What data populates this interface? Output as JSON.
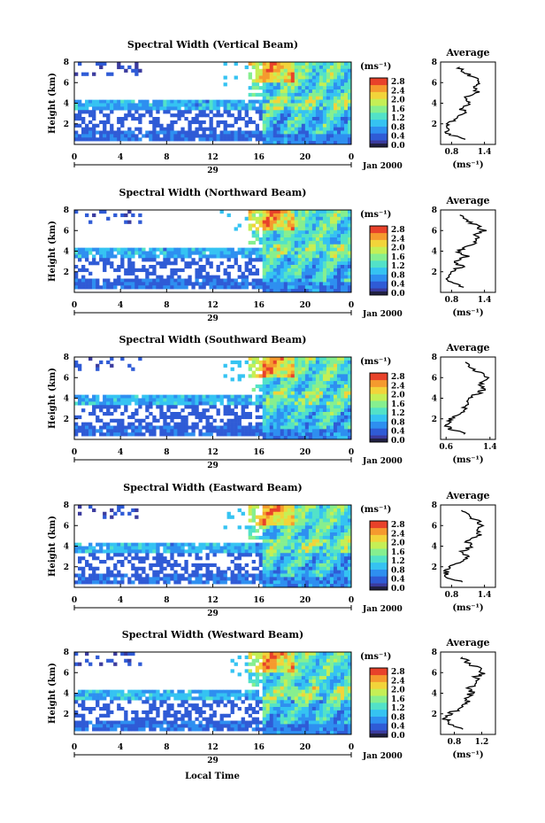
{
  "colors": {
    "colormap": [
      "#3b3b9e",
      "#2f5bd6",
      "#2e8ff0",
      "#35c3f2",
      "#52e2c8",
      "#86ef8f",
      "#c5ef55",
      "#f2d43a",
      "#f59a2e",
      "#e8422a"
    ]
  },
  "chart_data": [
    {
      "type": "heatmap",
      "title": "Spectral Width (Vertical Beam)",
      "ylabel": "Height (km)",
      "yticks": [
        "2",
        "4",
        "6",
        "8"
      ],
      "xticks": [
        "0",
        "4",
        "8",
        "12",
        "16",
        "20",
        "0"
      ],
      "date_mid": "29",
      "date_end": "Jan 2000",
      "units": "(ms⁻¹)",
      "colorbar_ticks": [
        "2.8",
        "2.4",
        "2.0",
        "1.6",
        "1.2",
        "0.8",
        "0.4",
        "0.0"
      ],
      "profile": {
        "title": "Average",
        "xlabel": "(ms⁻¹)",
        "xticks": [
          "0.8",
          "1.4"
        ],
        "xlim": [
          0.6,
          1.6
        ],
        "ylim": [
          0,
          8
        ],
        "yticks": [
          "2",
          "4",
          "6",
          "8"
        ],
        "heights": [
          0.5,
          1.0,
          1.5,
          2.0,
          2.5,
          3.0,
          3.5,
          4.0,
          4.5,
          5.0,
          5.5,
          6.0,
          6.5,
          7.0,
          7.5
        ],
        "values": [
          1.08,
          0.75,
          0.72,
          0.75,
          0.88,
          1.02,
          0.98,
          1.12,
          1.05,
          1.28,
          1.18,
          1.32,
          1.2,
          1.02,
          0.95
        ]
      }
    },
    {
      "type": "heatmap",
      "title": "Spectral Width (Northward Beam)",
      "ylabel": "Height (km)",
      "yticks": [
        "2",
        "4",
        "6",
        "8"
      ],
      "xticks": [
        "0",
        "4",
        "8",
        "12",
        "16",
        "20",
        "0"
      ],
      "date_mid": "29",
      "date_end": "Jan 2000",
      "units": "(ms⁻¹)",
      "colorbar_ticks": [
        "2.8",
        "2.4",
        "2.0",
        "1.6",
        "1.2",
        "0.8",
        "0.4",
        "0.0"
      ],
      "profile": {
        "title": "Average",
        "xlabel": "(ms⁻¹)",
        "xticks": [
          "0.8",
          "1.4"
        ],
        "xlim": [
          0.6,
          1.6
        ],
        "ylim": [
          0,
          8
        ],
        "yticks": [
          "2",
          "4",
          "6",
          "8"
        ],
        "heights": [
          0.5,
          1.0,
          1.5,
          2.0,
          2.5,
          3.0,
          3.5,
          4.0,
          4.5,
          5.0,
          5.5,
          6.0,
          6.5,
          7.0,
          7.5
        ],
        "values": [
          1.05,
          0.75,
          0.72,
          0.78,
          0.98,
          0.88,
          1.08,
          0.9,
          1.12,
          1.3,
          1.22,
          1.38,
          1.25,
          1.05,
          0.95
        ]
      }
    },
    {
      "type": "heatmap",
      "title": "Spectral Width (Southward Beam)",
      "ylabel": "Height (km)",
      "yticks": [
        "2",
        "4",
        "6",
        "8"
      ],
      "xticks": [
        "0",
        "4",
        "8",
        "12",
        "16",
        "20",
        "0"
      ],
      "date_mid": "29",
      "date_end": "Jan 2000",
      "units": "(ms⁻¹)",
      "colorbar_ticks": [
        "2.8",
        "2.4",
        "2.0",
        "1.6",
        "1.2",
        "0.8",
        "0.4",
        "0.0"
      ],
      "profile": {
        "title": "Average",
        "xlabel": "(ms⁻¹)",
        "xticks": [
          "0.6",
          "1.4"
        ],
        "xlim": [
          0.5,
          1.5
        ],
        "ylim": [
          0,
          8
        ],
        "yticks": [
          "2",
          "4",
          "6",
          "8"
        ],
        "heights": [
          0.5,
          1.0,
          1.5,
          2.0,
          2.5,
          3.0,
          3.5,
          4.0,
          4.5,
          5.0,
          5.5,
          6.0,
          6.5,
          7.0,
          7.5
        ],
        "values": [
          0.95,
          0.68,
          0.6,
          0.7,
          0.88,
          0.92,
          1.05,
          1.0,
          1.2,
          1.3,
          1.2,
          1.35,
          1.2,
          1.05,
          0.95
        ]
      }
    },
    {
      "type": "heatmap",
      "title": "Spectral Width (Eastward Beam)",
      "ylabel": "Height (km)",
      "yticks": [
        "2",
        "4",
        "6",
        "8"
      ],
      "xticks": [
        "0",
        "4",
        "8",
        "12",
        "16",
        "20",
        "0"
      ],
      "date_mid": "29",
      "date_end": "Jan 2000",
      "units": "(ms⁻¹)",
      "colorbar_ticks": [
        "2.8",
        "2.4",
        "2.0",
        "1.6",
        "1.2",
        "0.8",
        "0.4",
        "0.0"
      ],
      "profile": {
        "title": "Average",
        "xlabel": "(ms⁻¹)",
        "xticks": [
          "0.8",
          "1.4"
        ],
        "xlim": [
          0.6,
          1.6
        ],
        "ylim": [
          0,
          8
        ],
        "yticks": [
          "2",
          "4",
          "6",
          "8"
        ],
        "heights": [
          0.5,
          1.0,
          1.5,
          2.0,
          2.5,
          3.0,
          3.5,
          4.0,
          4.5,
          5.0,
          5.5,
          6.0,
          6.5,
          7.0,
          7.5
        ],
        "values": [
          1.02,
          0.72,
          0.7,
          0.75,
          0.95,
          1.1,
          0.98,
          1.18,
          1.05,
          1.32,
          1.25,
          1.38,
          1.25,
          1.1,
          0.98
        ]
      }
    },
    {
      "type": "heatmap",
      "title": "Spectral Width (Westward Beam)",
      "ylabel": "Height (km)",
      "yticks": [
        "2",
        "4",
        "6",
        "8"
      ],
      "xticks": [
        "0",
        "4",
        "8",
        "12",
        "16",
        "20",
        "0"
      ],
      "date_mid": "29",
      "date_end": "Jan 2000",
      "units": "(ms⁻¹)",
      "colorbar_ticks": [
        "2.8",
        "2.4",
        "2.0",
        "1.6",
        "1.2",
        "0.8",
        "0.4",
        "0.0"
      ],
      "profile": {
        "title": "Average",
        "xlabel": "(ms⁻¹)",
        "xticks": [
          "0.8",
          "1.2"
        ],
        "xlim": [
          0.6,
          1.4
        ],
        "ylim": [
          0,
          8
        ],
        "yticks": [
          "2",
          "4",
          "6",
          "8"
        ],
        "heights": [
          0.5,
          1.0,
          1.5,
          2.0,
          2.5,
          3.0,
          3.5,
          4.0,
          4.5,
          5.0,
          5.5,
          6.0,
          6.5,
          7.0,
          7.5
        ],
        "values": [
          0.95,
          0.72,
          0.68,
          0.72,
          0.9,
          1.0,
          0.95,
          1.05,
          1.0,
          1.18,
          1.1,
          1.22,
          1.12,
          1.0,
          0.92
        ]
      }
    }
  ],
  "footer": {
    "xlabel": "Local Time"
  }
}
